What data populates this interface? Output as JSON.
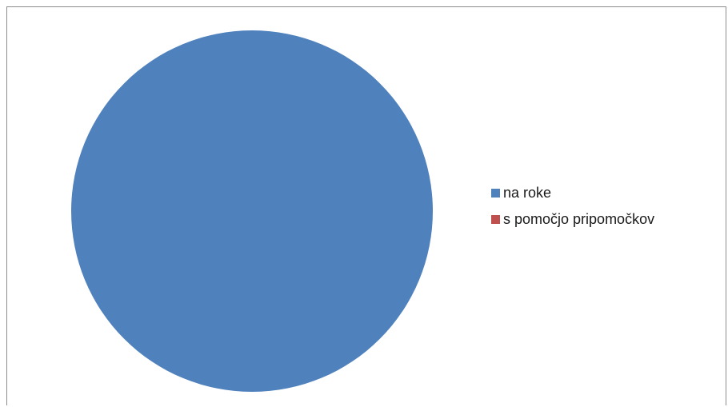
{
  "chart_data": {
    "type": "pie",
    "title": "",
    "categories": [
      "na roke",
      "s pomočjo pripomočkov"
    ],
    "values": [
      100,
      0
    ],
    "colors": [
      "#4f81bd",
      "#c0504d"
    ],
    "legend_position": "right"
  }
}
